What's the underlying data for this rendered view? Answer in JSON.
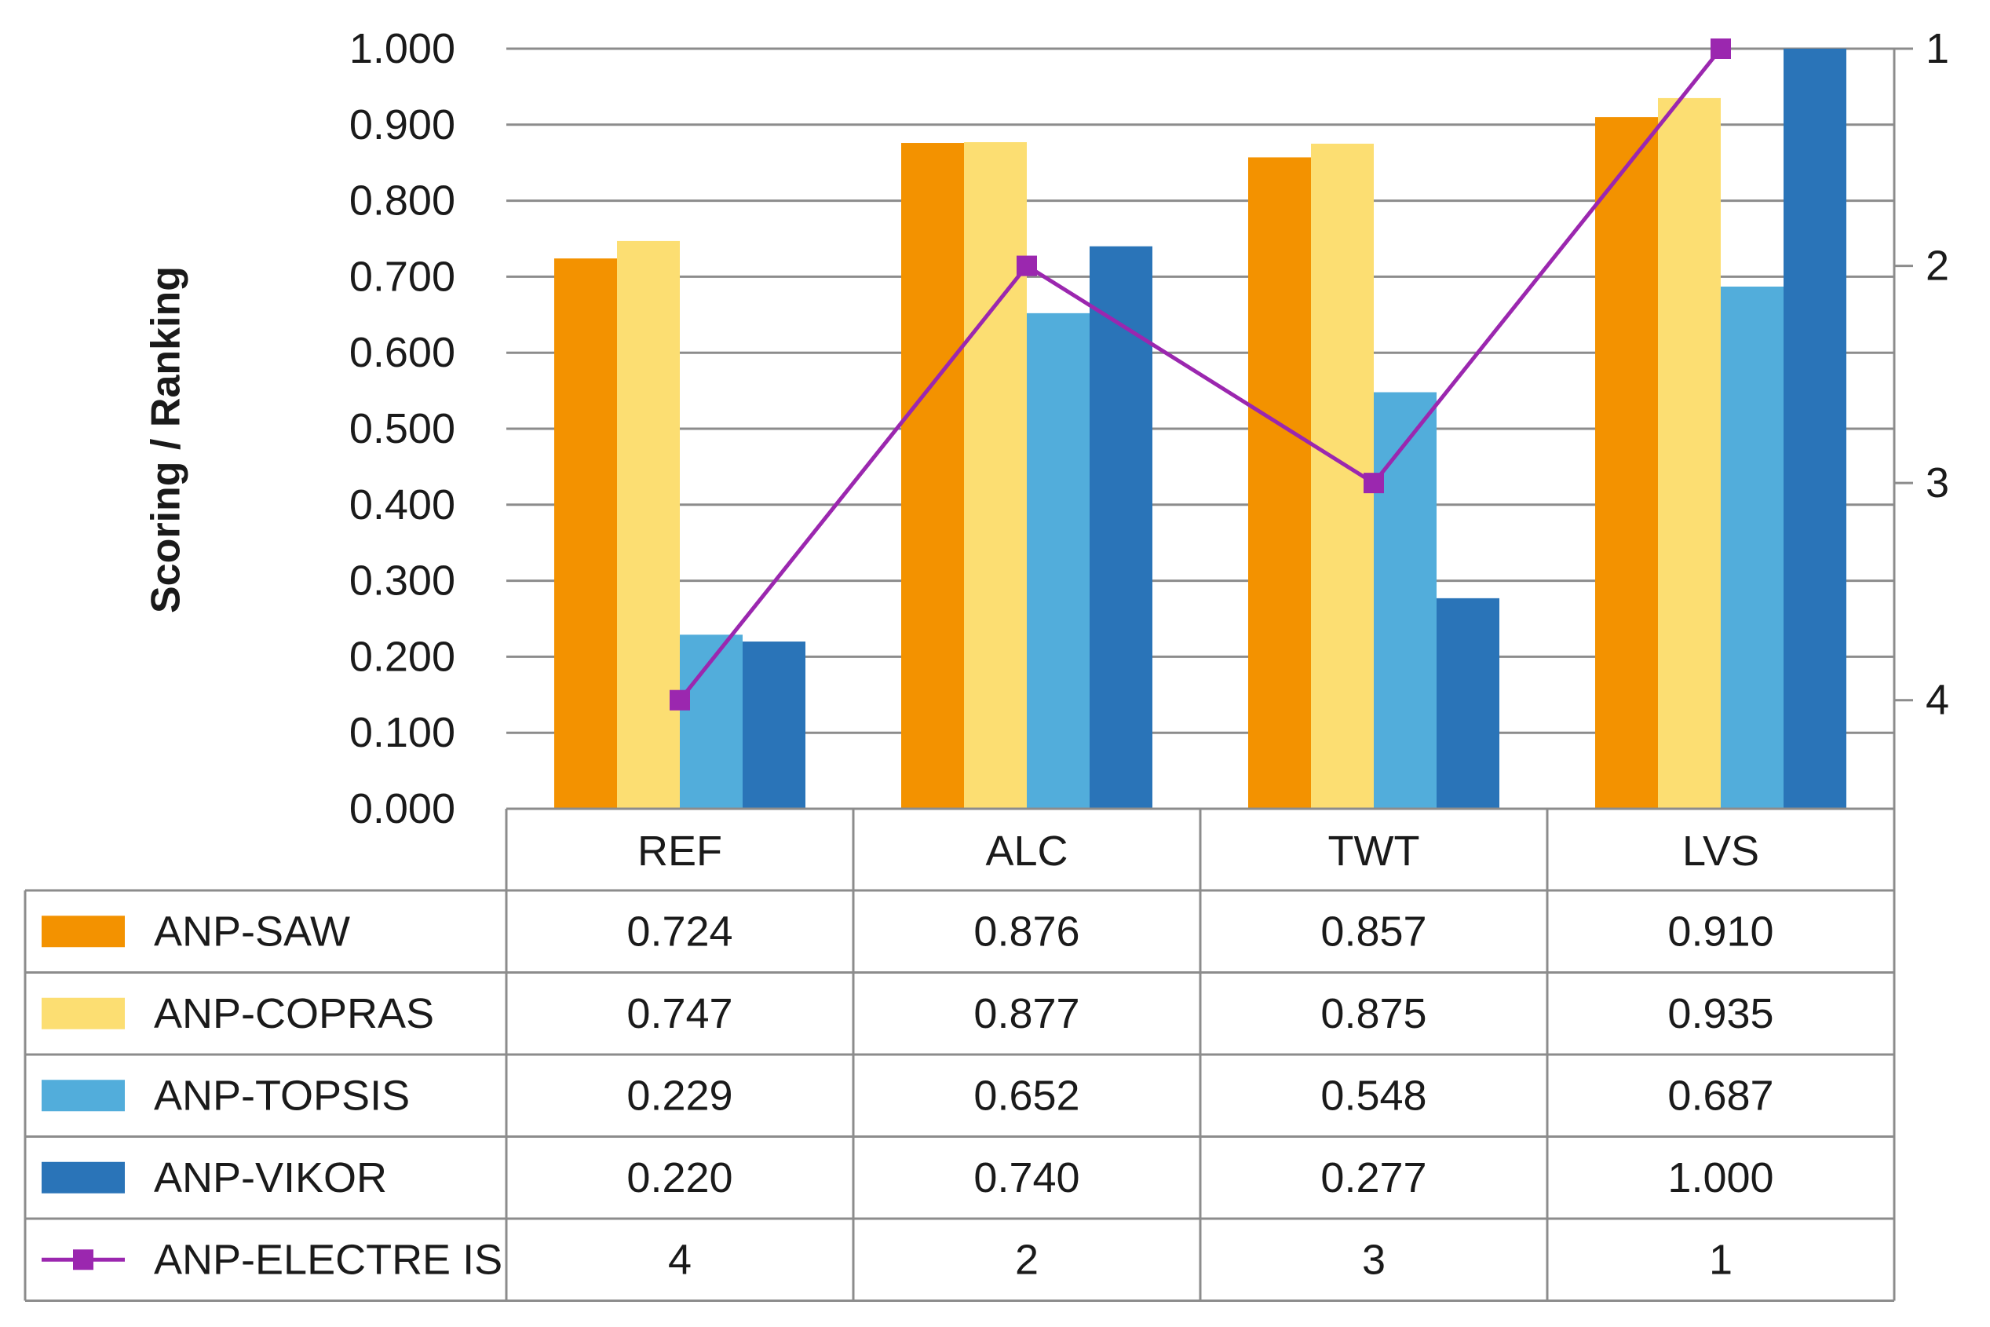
{
  "chart_data": {
    "type": "bar",
    "ylabel": "Scoring / Ranking",
    "ylim": [
      0,
      1
    ],
    "y_ticks": [
      "0.000",
      "0.100",
      "0.200",
      "0.300",
      "0.400",
      "0.500",
      "0.600",
      "0.700",
      "0.800",
      "0.900",
      "1.000"
    ],
    "y2lim": [
      1,
      4.5
    ],
    "y2_ticks": [
      "1",
      "2",
      "3",
      "4"
    ],
    "categories": [
      "REF",
      "ALC",
      "TWT",
      "LVS"
    ],
    "series": [
      {
        "name": "ANP-SAW",
        "type": "bar",
        "color": "#F39200",
        "values": [
          0.724,
          0.876,
          0.857,
          0.91
        ],
        "labels": [
          "0.724",
          "0.876",
          "0.857",
          "0.910"
        ]
      },
      {
        "name": "ANP-COPRAS",
        "type": "bar",
        "color": "#FCDE72",
        "values": [
          0.747,
          0.877,
          0.875,
          0.935
        ],
        "labels": [
          "0.747",
          "0.877",
          "0.875",
          "0.935"
        ]
      },
      {
        "name": "ANP-TOPSIS",
        "type": "bar",
        "color": "#52ADDB",
        "values": [
          0.229,
          0.652,
          0.548,
          0.687
        ],
        "labels": [
          "0.229",
          "0.652",
          "0.548",
          "0.687"
        ]
      },
      {
        "name": "ANP-VIKOR",
        "type": "bar",
        "color": "#2A74B8",
        "values": [
          0.22,
          0.74,
          0.277,
          1.0
        ],
        "labels": [
          "0.220",
          "0.740",
          "0.277",
          "1.000"
        ]
      },
      {
        "name": "ANP-ELECTRE IS",
        "type": "line",
        "axis": "secondary",
        "color": "#9B27AF",
        "values": [
          4,
          2,
          3,
          1
        ],
        "labels": [
          "4",
          "2",
          "3",
          "1"
        ]
      }
    ],
    "data_table": true,
    "grid": true
  }
}
